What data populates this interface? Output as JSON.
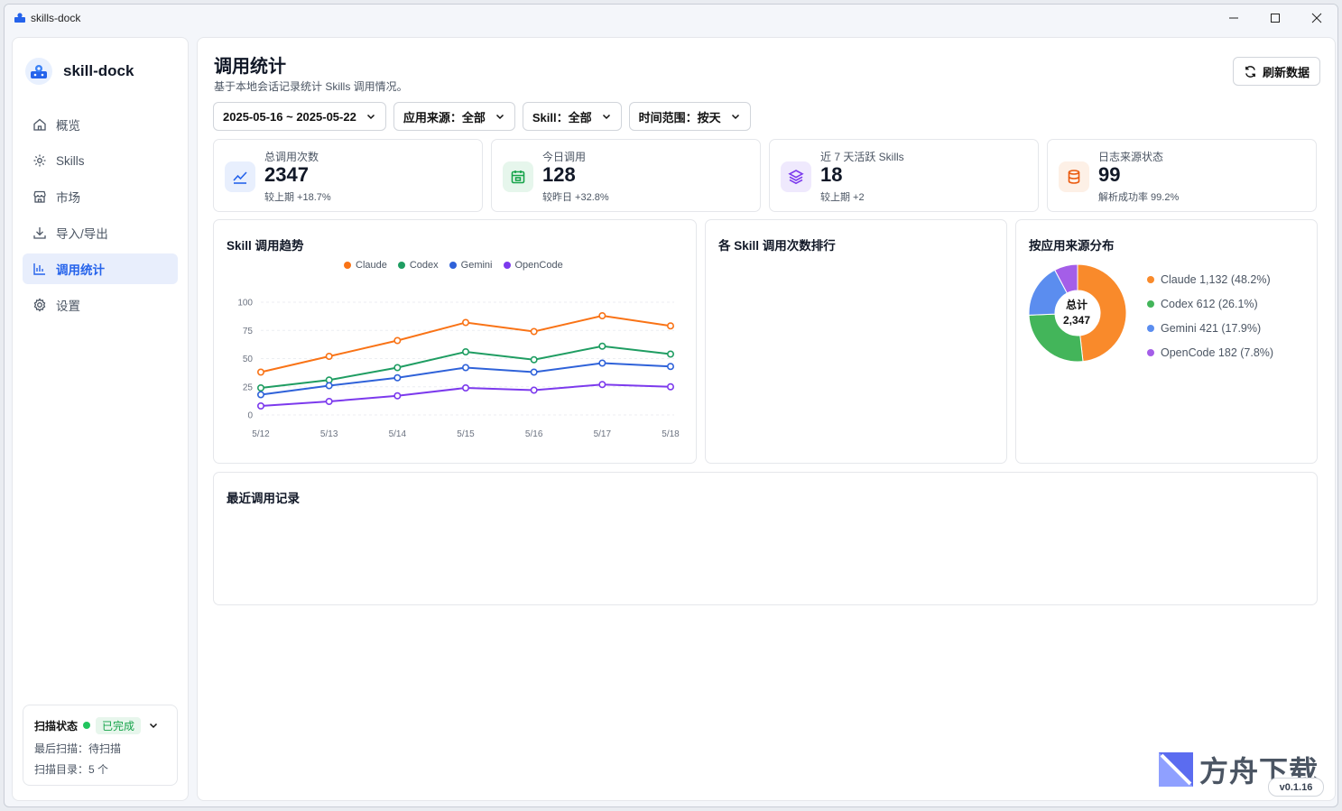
{
  "window": {
    "title": "skills-dock"
  },
  "brand": {
    "name": "skill-dock"
  },
  "sidebar": {
    "items": [
      {
        "label": "概览",
        "icon": "home-icon",
        "active": false
      },
      {
        "label": "Skills",
        "icon": "gear-icon",
        "active": false
      },
      {
        "label": "市场",
        "icon": "store-icon",
        "active": false
      },
      {
        "label": "导入/导出",
        "icon": "download-icon",
        "active": false
      },
      {
        "label": "调用统计",
        "icon": "bar-chart-icon",
        "active": true
      },
      {
        "label": "设置",
        "icon": "settings-icon",
        "active": false
      }
    ],
    "scan": {
      "label": "扫描状态",
      "status": "已完成",
      "last_scan": "最后扫描：待扫描",
      "dirs": "扫描目录：5 个"
    }
  },
  "header": {
    "title": "调用统计",
    "subtitle": "基于本地会话记录统计 Skills 调用情况。",
    "refresh_label": "刷新数据"
  },
  "filters": [
    "2025-05-16 ~ 2025-05-22",
    "应用来源：全部",
    "Skill：全部",
    "时间范围：按天"
  ],
  "stats": [
    {
      "label": "总调用次数",
      "value": "2347",
      "sub": "较上期 +18.7%",
      "icon": "trend-icon",
      "color": "#2563eb",
      "bg": "#e8effd"
    },
    {
      "label": "今日调用",
      "value": "128",
      "sub": "较昨日 +32.8%",
      "icon": "calendar-icon",
      "color": "#16a34a",
      "bg": "#e6f6ec"
    },
    {
      "label": "近 7 天活跃 Skills",
      "value": "18",
      "sub": "较上期 +2",
      "icon": "layers-icon",
      "color": "#7c3aed",
      "bg": "#efe9fd"
    },
    {
      "label": "日志来源状态",
      "value": "99",
      "sub": "解析成功率 99.2%",
      "icon": "database-icon",
      "color": "#ea580c",
      "bg": "#fdf0e6"
    }
  ],
  "cards": {
    "trend_title": "Skill 调用趋势",
    "ranking_title": "各 Skill 调用次数排行",
    "source_title": "按应用来源分布",
    "recent_title": "最近调用记录"
  },
  "chart_data": [
    {
      "type": "line",
      "title": "Skill 调用趋势",
      "categories": [
        "5/12",
        "5/13",
        "5/14",
        "5/15",
        "5/16",
        "5/17",
        "5/18"
      ],
      "yticks": [
        0,
        25,
        50,
        75,
        100
      ],
      "ylim": [
        0,
        100
      ],
      "grid": true,
      "legend": "top",
      "series": [
        {
          "name": "Claude",
          "color": "#f97316",
          "values": [
            38,
            52,
            66,
            82,
            74,
            88,
            79
          ]
        },
        {
          "name": "Codex",
          "color": "#1f9d62",
          "values": [
            24,
            31,
            42,
            56,
            49,
            61,
            54
          ]
        },
        {
          "name": "Gemini",
          "color": "#2f62d9",
          "values": [
            18,
            26,
            33,
            42,
            38,
            46,
            43
          ]
        },
        {
          "name": "OpenCode",
          "color": "#7c3aed",
          "values": [
            8,
            12,
            17,
            24,
            22,
            27,
            25
          ]
        }
      ]
    },
    {
      "type": "pie",
      "title": "按应用来源分布",
      "center_label": "总计",
      "center_value": "2,347",
      "legend": "right",
      "slices": [
        {
          "name": "Claude",
          "value": 1132,
          "percent": 48.2,
          "label": "Claude 1,132 (48.2%)",
          "color": "#f98a2b"
        },
        {
          "name": "Codex",
          "value": 612,
          "percent": 26.1,
          "label": "Codex 612 (26.1%)",
          "color": "#43b55a"
        },
        {
          "name": "Gemini",
          "value": 421,
          "percent": 17.9,
          "label": "Gemini 421 (17.9%)",
          "color": "#5b8def"
        },
        {
          "name": "OpenCode",
          "value": 182,
          "percent": 7.8,
          "label": "OpenCode 182 (7.8%)",
          "color": "#a45ee8"
        }
      ]
    }
  ],
  "watermark": {
    "text": "方舟下载"
  },
  "version": "v0.1.16"
}
